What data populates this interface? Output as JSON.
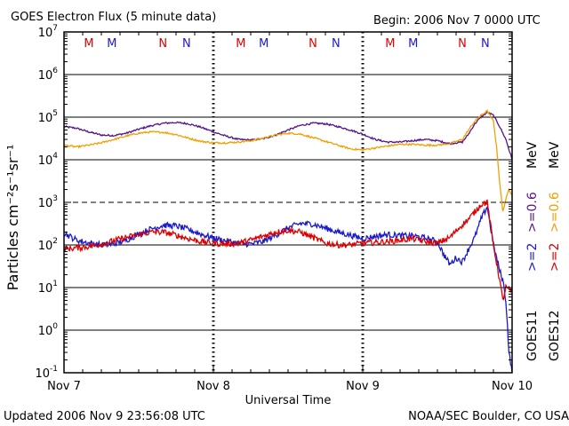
{
  "header": {
    "title": "GOES Electron Flux (5 minute data)",
    "begin": "Begin: 2006 Nov 7 0000 UTC"
  },
  "footer": {
    "updated": "Updated 2006 Nov  9 23:56:08 UTC",
    "credit": "NOAA/SEC Boulder, CO USA"
  },
  "colors": {
    "goes11_high": "#1a1acc",
    "goes11_low": "#55148c",
    "goes12_high": "#dd0000",
    "goes12_low": "#f0a000",
    "marker_m": "#dd0000",
    "marker_n_red": "#dd0000",
    "marker_blue": "#1a1acc"
  },
  "chart_data": {
    "type": "line",
    "title": "GOES Electron Flux (5 minute data)",
    "xlabel": "Universal Time",
    "ylabel": "Particles cm⁻²s⁻¹sr⁻¹",
    "y_scale": "log",
    "ylim": [
      0.1,
      10000000
    ],
    "y_ticks": [
      {
        "value": 0.1,
        "base": "10",
        "exp": "-1"
      },
      {
        "value": 1,
        "base": "10",
        "exp": "0"
      },
      {
        "value": 10,
        "base": "10",
        "exp": "1"
      },
      {
        "value": 100,
        "base": "10",
        "exp": "2"
      },
      {
        "value": 1000,
        "base": "10",
        "exp": "3"
      },
      {
        "value": 10000,
        "base": "10",
        "exp": "4"
      },
      {
        "value": 100000,
        "base": "10",
        "exp": "5"
      },
      {
        "value": 1000000,
        "base": "10",
        "exp": "6"
      },
      {
        "value": 10000000,
        "base": "10",
        "exp": "7"
      }
    ],
    "xlim": [
      0,
      72
    ],
    "x_unit": "hours since 2006 Nov 7 0000 UTC",
    "x_ticks": [
      {
        "value": 0,
        "label": "Nov 7"
      },
      {
        "value": 24,
        "label": "Nov 8"
      },
      {
        "value": 48,
        "label": "Nov 9"
      },
      {
        "value": 72,
        "label": "Nov 10"
      }
    ],
    "threshold_line": 1000,
    "day_markers": [
      24,
      48
    ],
    "mn_markers": [
      {
        "label": "M",
        "hour": 4.0,
        "color": "red"
      },
      {
        "label": "M",
        "hour": 7.7,
        "color": "blue"
      },
      {
        "label": "N",
        "hour": 15.9,
        "color": "red"
      },
      {
        "label": "N",
        "hour": 19.7,
        "color": "blue"
      },
      {
        "label": "M",
        "hour": 28.4,
        "color": "red"
      },
      {
        "label": "M",
        "hour": 32.1,
        "color": "blue"
      },
      {
        "label": "N",
        "hour": 40.0,
        "color": "red"
      },
      {
        "label": "N",
        "hour": 43.7,
        "color": "blue"
      },
      {
        "label": "M",
        "hour": 52.4,
        "color": "red"
      },
      {
        "label": "M",
        "hour": 56.1,
        "color": "blue"
      },
      {
        "label": "N",
        "hour": 64.0,
        "color": "red"
      },
      {
        "label": "N",
        "hour": 67.7,
        "color": "blue"
      }
    ],
    "legend": {
      "col1": {
        "satellite": "GOES11",
        "high": ">=2",
        "low": ">=0.6",
        "unit": "MeV"
      },
      "col2": {
        "satellite": "GOES12",
        "high": ">=2",
        "low": ">=0.6",
        "unit": "MeV"
      }
    },
    "series": [
      {
        "name": "GOES11 >=0.6 MeV",
        "color": "#55148c",
        "x": [
          0,
          2,
          4,
          6,
          8,
          10,
          12,
          14,
          16,
          18,
          20,
          22,
          24,
          26,
          28,
          30,
          32,
          34,
          36,
          38,
          40,
          42,
          44,
          46,
          48,
          50,
          52,
          54,
          56,
          58,
          60,
          62,
          64,
          65,
          66,
          67,
          68,
          69,
          70,
          71,
          72
        ],
        "y": [
          60000,
          55000,
          45000,
          38000,
          37000,
          42000,
          52000,
          63000,
          72000,
          75000,
          70000,
          58000,
          45000,
          36000,
          30000,
          29000,
          31000,
          38000,
          50000,
          64000,
          72000,
          70000,
          60000,
          50000,
          40000,
          30000,
          26000,
          26000,
          28000,
          30000,
          28000,
          24000,
          26000,
          40000,
          70000,
          100000,
          130000,
          110000,
          60000,
          30000,
          10000
        ]
      },
      {
        "name": "GOES12 >=0.6 MeV",
        "color": "#f0a000",
        "x": [
          0,
          2,
          4,
          6,
          8,
          10,
          12,
          14,
          16,
          18,
          20,
          22,
          24,
          26,
          28,
          30,
          32,
          34,
          36,
          38,
          40,
          42,
          44,
          46,
          48,
          50,
          52,
          54,
          56,
          58,
          60,
          62,
          64,
          65,
          66,
          67,
          68,
          69,
          69.5,
          70,
          70.5,
          71,
          71.5,
          72
        ],
        "y": [
          22000,
          20000,
          22000,
          25000,
          30000,
          36000,
          42000,
          45000,
          44000,
          39000,
          32000,
          27000,
          25000,
          25000,
          26000,
          28000,
          32000,
          38000,
          42000,
          40000,
          33000,
          27000,
          22000,
          18000,
          17000,
          19000,
          21000,
          23000,
          23000,
          22000,
          22000,
          24000,
          30000,
          50000,
          80000,
          110000,
          140000,
          80000,
          20000,
          3000,
          600,
          1200,
          2000,
          1500
        ]
      },
      {
        "name": "GOES11 >=2 MeV",
        "color": "#1a1acc",
        "x": [
          0,
          2,
          4,
          6,
          8,
          10,
          12,
          14,
          16,
          18,
          20,
          22,
          24,
          26,
          28,
          30,
          32,
          34,
          36,
          38,
          40,
          42,
          44,
          46,
          48,
          50,
          52,
          54,
          56,
          58,
          60,
          61,
          62,
          63,
          64,
          65,
          66,
          67,
          68,
          69,
          70,
          70.5,
          71,
          71.5,
          72
        ],
        "y": [
          190,
          130,
          110,
          100,
          105,
          130,
          180,
          240,
          290,
          280,
          230,
          180,
          145,
          125,
          110,
          105,
          120,
          170,
          250,
          320,
          310,
          250,
          200,
          170,
          140,
          160,
          175,
          165,
          165,
          145,
          120,
          60,
          35,
          50,
          40,
          80,
          150,
          400,
          800,
          100,
          25,
          15,
          5,
          0.3,
          0.1
        ]
      },
      {
        "name": "GOES12 >=2 MeV",
        "color": "#dd0000",
        "x": [
          0,
          2,
          4,
          6,
          8,
          10,
          12,
          14,
          16,
          18,
          20,
          22,
          24,
          26,
          28,
          30,
          32,
          34,
          36,
          38,
          40,
          42,
          44,
          46,
          48,
          50,
          52,
          54,
          56,
          58,
          60,
          62,
          64,
          65,
          66,
          67,
          68,
          69,
          70,
          70.5,
          71,
          71.5,
          72
        ],
        "y": [
          80,
          85,
          92,
          105,
          125,
          150,
          175,
          200,
          200,
          170,
          140,
          120,
          110,
          105,
          110,
          130,
          160,
          200,
          220,
          200,
          150,
          110,
          100,
          100,
          110,
          115,
          120,
          130,
          140,
          120,
          110,
          150,
          300,
          400,
          600,
          900,
          1000,
          100,
          15,
          5,
          10,
          9,
          8
        ]
      }
    ]
  }
}
